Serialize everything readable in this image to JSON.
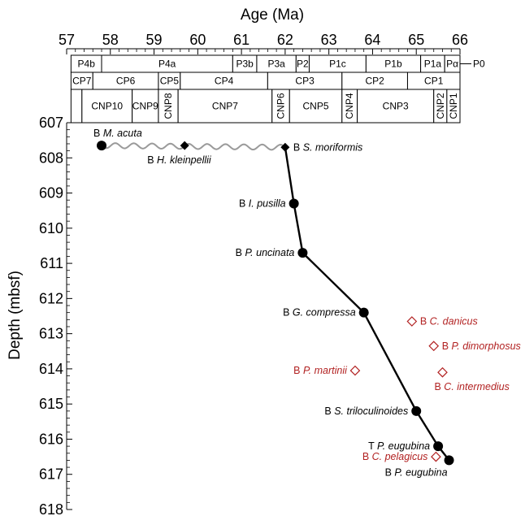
{
  "chart_data": {
    "type": "line",
    "xlabel": "Age (Ma)",
    "ylabel": "Depth (mbsf)",
    "xlim": [
      57,
      66
    ],
    "ylim": [
      607,
      618
    ],
    "x_ticks": [
      "57",
      "58",
      "59",
      "60",
      "61",
      "62",
      "63",
      "64",
      "65",
      "66"
    ],
    "y_ticks": [
      "607",
      "608",
      "609",
      "610",
      "611",
      "612",
      "613",
      "614",
      "615",
      "616",
      "617",
      "618"
    ],
    "zone_rows": [
      {
        "name": "planktonic-foram",
        "zones": [
          {
            "label": "P4b",
            "from": 57.1,
            "to": 57.8
          },
          {
            "label": "P4a",
            "from": 57.8,
            "to": 60.8
          },
          {
            "label": "P3b",
            "from": 60.8,
            "to": 61.35
          },
          {
            "label": "P3a",
            "from": 61.35,
            "to": 62.25
          },
          {
            "label": "P2",
            "from": 62.25,
            "to": 62.55
          },
          {
            "label": "P1c",
            "from": 62.55,
            "to": 63.85
          },
          {
            "label": "P1b",
            "from": 63.85,
            "to": 65.1
          },
          {
            "label": "P1a",
            "from": 65.1,
            "to": 65.65
          },
          {
            "label": "Pα",
            "from": 65.65,
            "to": 66.0
          }
        ],
        "extra_label": "P0"
      },
      {
        "name": "cp-nannofossil",
        "zones": [
          {
            "label": "CP7",
            "from": 57.1,
            "to": 57.6
          },
          {
            "label": "CP6",
            "from": 57.6,
            "to": 59.1
          },
          {
            "label": "CP5",
            "from": 59.1,
            "to": 59.6
          },
          {
            "label": "CP4",
            "from": 59.6,
            "to": 61.6
          },
          {
            "label": "CP3",
            "from": 61.6,
            "to": 63.3
          },
          {
            "label": "CP2",
            "from": 63.3,
            "to": 64.8
          },
          {
            "label": "CP1",
            "from": 64.8,
            "to": 66.0
          }
        ]
      },
      {
        "name": "cnp-nannofossil",
        "zones": [
          {
            "label": "",
            "from": 57.1,
            "to": 57.35
          },
          {
            "label": "CNP10",
            "from": 57.35,
            "to": 58.5
          },
          {
            "label": "CNP9",
            "from": 58.5,
            "to": 59.1
          },
          {
            "label": "CNP8",
            "from": 59.1,
            "to": 59.55
          },
          {
            "label": "CNP7",
            "from": 59.55,
            "to": 61.7
          },
          {
            "label": "CNP6",
            "from": 61.7,
            "to": 62.1
          },
          {
            "label": "CNP5",
            "from": 62.1,
            "to": 63.3
          },
          {
            "label": "CNP4",
            "from": 63.3,
            "to": 63.65
          },
          {
            "label": "CNP3",
            "from": 63.65,
            "to": 65.4
          },
          {
            "label": "CNP2",
            "from": 65.4,
            "to": 65.7
          },
          {
            "label": "CNP1",
            "from": 65.7,
            "to": 66.0
          }
        ]
      }
    ],
    "age_model": [
      {
        "age": 62.0,
        "depth": 607.7
      },
      {
        "age": 62.2,
        "depth": 609.3
      },
      {
        "age": 62.4,
        "depth": 610.7
      },
      {
        "age": 63.8,
        "depth": 612.4
      },
      {
        "age": 65.0,
        "depth": 615.2
      },
      {
        "age": 65.5,
        "depth": 616.2
      },
      {
        "age": 65.75,
        "depth": 616.6
      }
    ],
    "hiatus": [
      {
        "age": 57.8,
        "depth": 607.65
      },
      {
        "age": 62.0,
        "depth": 607.7
      }
    ],
    "datums": [
      {
        "prefix": "B ",
        "taxon": "M. acuta",
        "age": 57.8,
        "depth": 607.65,
        "marker": "circle",
        "color": "#000000",
        "label_side": "above"
      },
      {
        "prefix": "B ",
        "taxon": "H. kleinpellii",
        "age": 59.7,
        "depth": 607.65,
        "marker": "diamond",
        "color": "#000000",
        "label_side": "below"
      },
      {
        "prefix": "B ",
        "taxon": "S. moriformis",
        "age": 62.0,
        "depth": 607.7,
        "marker": "diamond",
        "color": "#000000",
        "label_side": "right"
      },
      {
        "prefix": "B ",
        "taxon": "I. pusilla",
        "age": 62.2,
        "depth": 609.3,
        "marker": "circle",
        "color": "#000000",
        "label_side": "left"
      },
      {
        "prefix": "B ",
        "taxon": "P. uncinata",
        "age": 62.4,
        "depth": 610.7,
        "marker": "circle",
        "color": "#000000",
        "label_side": "left"
      },
      {
        "prefix": "B ",
        "taxon": "G. compressa",
        "age": 63.8,
        "depth": 612.4,
        "marker": "circle",
        "color": "#000000",
        "label_side": "left"
      },
      {
        "prefix": "B ",
        "taxon": "S. triloculinoides",
        "age": 65.0,
        "depth": 615.2,
        "marker": "circle",
        "color": "#000000",
        "label_side": "left"
      },
      {
        "prefix": "T ",
        "taxon": "P. eugubina",
        "age": 65.5,
        "depth": 616.2,
        "marker": "circle",
        "color": "#000000",
        "label_side": "left"
      },
      {
        "prefix": "B ",
        "taxon": "P. eugubina",
        "age": 65.75,
        "depth": 616.6,
        "marker": "circle",
        "color": "#000000",
        "label_side": "below-left"
      },
      {
        "prefix": "B ",
        "taxon": "C. danicus",
        "age": 64.9,
        "depth": 612.65,
        "marker": "open-diamond",
        "color": "#b22222",
        "label_side": "right"
      },
      {
        "prefix": "B ",
        "taxon": "P. dimorphosus",
        "age": 65.4,
        "depth": 613.35,
        "marker": "open-diamond",
        "color": "#b22222",
        "label_side": "right"
      },
      {
        "prefix": "B ",
        "taxon": "P. martinii",
        "age": 63.6,
        "depth": 614.05,
        "marker": "open-diamond",
        "color": "#b22222",
        "label_side": "left"
      },
      {
        "prefix": "B ",
        "taxon": "C. intermedius",
        "age": 65.6,
        "depth": 614.1,
        "marker": "open-diamond",
        "color": "#b22222",
        "label_side": "below"
      },
      {
        "prefix": "B ",
        "taxon": "C. pelagicus",
        "age": 65.45,
        "depth": 616.5,
        "marker": "open-diamond",
        "color": "#b22222",
        "label_side": "left"
      }
    ]
  }
}
